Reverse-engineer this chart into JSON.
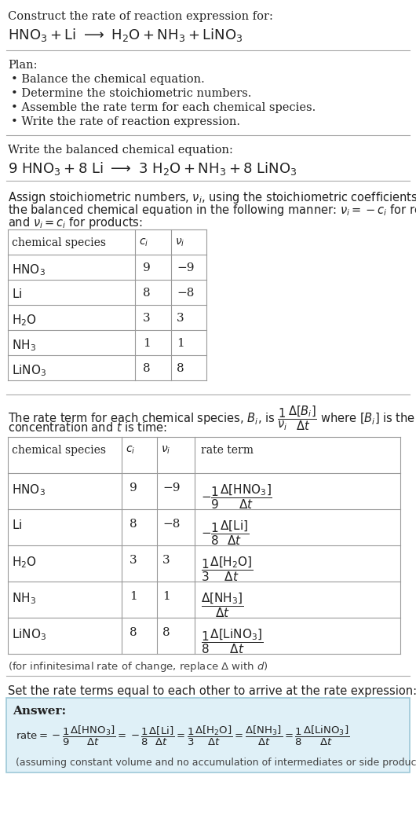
{
  "bg_color": "#ffffff",
  "answer_bg": "#dff0f7",
  "answer_border": "#9dc8d8",
  "line_color": "#aaaaaa",
  "table_line_color": "#999999",
  "text_color": "#222222",
  "sections": {
    "s1_title": "Construct the rate of reaction expression for:",
    "s1_eq": "$\\mathrm{HNO_3 + Li \\longrightarrow H_2O + NH_3 + LiNO_3}$",
    "s2_header": "Plan:",
    "s2_items": [
      "\\u2022 Balance the chemical equation.",
      "\\u2022 Determine the stoichiometric numbers.",
      "\\u2022 Assemble the rate term for each chemical species.",
      "\\u2022 Write the rate of reaction expression."
    ],
    "s3_header": "Write the balanced chemical equation:",
    "s3_eq": "$\\mathrm{9\\ HNO_3 + 8\\ Li \\longrightarrow 3\\ H_2O + NH_3 + 8\\ LiNO_3}$",
    "s4_para": "Assign stoichiometric numbers, $\\nu_i$, using the stoichiometric coefficients, $c_i$, from the balanced chemical equation in the following manner: $\\nu_i = -c_i$ for reactants and $\\nu_i = c_i$ for products:",
    "s5_para1": "The rate term for each chemical species, $B_i$, is $\\dfrac{1}{\\nu_i}\\dfrac{\\Delta[B_i]}{\\Delta t}$ where $[B_i]$ is the amount",
    "s5_para2": "concentration and $t$ is time:",
    "s5_footnote": "(for infinitesimal rate of change, replace \\u0394 with $d$)",
    "s6_header": "Set the rate terms equal to each other to arrive at the rate expression:",
    "s6_answer_label": "Answer:",
    "s6_footnote": "(assuming constant volume and no accumulation of intermediates or side products)",
    "table1_cols": [
      "chemical species",
      "$c_i$",
      "$\\nu_i$"
    ],
    "table1_rows": [
      [
        "$\\mathrm{HNO_3}$",
        "9",
        "\\u22129"
      ],
      [
        "$\\mathrm{Li}$",
        "8",
        "\\u22128"
      ],
      [
        "$\\mathrm{H_2O}$",
        "3",
        "3"
      ],
      [
        "$\\mathrm{NH_3}$",
        "1",
        "1"
      ],
      [
        "$\\mathrm{LiNO_3}$",
        "8",
        "8"
      ]
    ],
    "table2_cols": [
      "chemical species",
      "$c_i$",
      "$\\nu_i$",
      "rate term"
    ],
    "table2_rows": [
      [
        "$\\mathrm{HNO_3}$",
        "9",
        "\\u22129",
        "$-\\dfrac{1}{9}\\dfrac{\\Delta[\\mathrm{HNO_3}]}{\\Delta t}$"
      ],
      [
        "$\\mathrm{Li}$",
        "8",
        "\\u22128",
        "$-\\dfrac{1}{8}\\dfrac{\\Delta[\\mathrm{Li}]}{\\Delta t}$"
      ],
      [
        "$\\mathrm{H_2O}$",
        "3",
        "3",
        "$\\dfrac{1}{3}\\dfrac{\\Delta[\\mathrm{H_2O}]}{\\Delta t}$"
      ],
      [
        "$\\mathrm{NH_3}$",
        "1",
        "1",
        "$\\dfrac{\\Delta[\\mathrm{NH_3}]}{\\Delta t}$"
      ],
      [
        "$\\mathrm{LiNO_3}$",
        "8",
        "8",
        "$\\dfrac{1}{8}\\dfrac{\\Delta[\\mathrm{LiNO_3}]}{\\Delta t}$"
      ]
    ],
    "answer_eq": "$\\mathrm{rate} = -\\dfrac{1}{9}\\dfrac{\\Delta[\\mathrm{HNO_3}]}{\\Delta t} = -\\dfrac{1}{8}\\dfrac{\\Delta[\\mathrm{Li}]}{\\Delta t} = \\dfrac{1}{3}\\dfrac{\\Delta[\\mathrm{H_2O}]}{\\Delta t} = \\dfrac{\\Delta[\\mathrm{NH_3}]}{\\Delta t} = \\dfrac{1}{8}\\dfrac{\\Delta[\\mathrm{LiNO_3}]}{\\Delta t}$"
  }
}
